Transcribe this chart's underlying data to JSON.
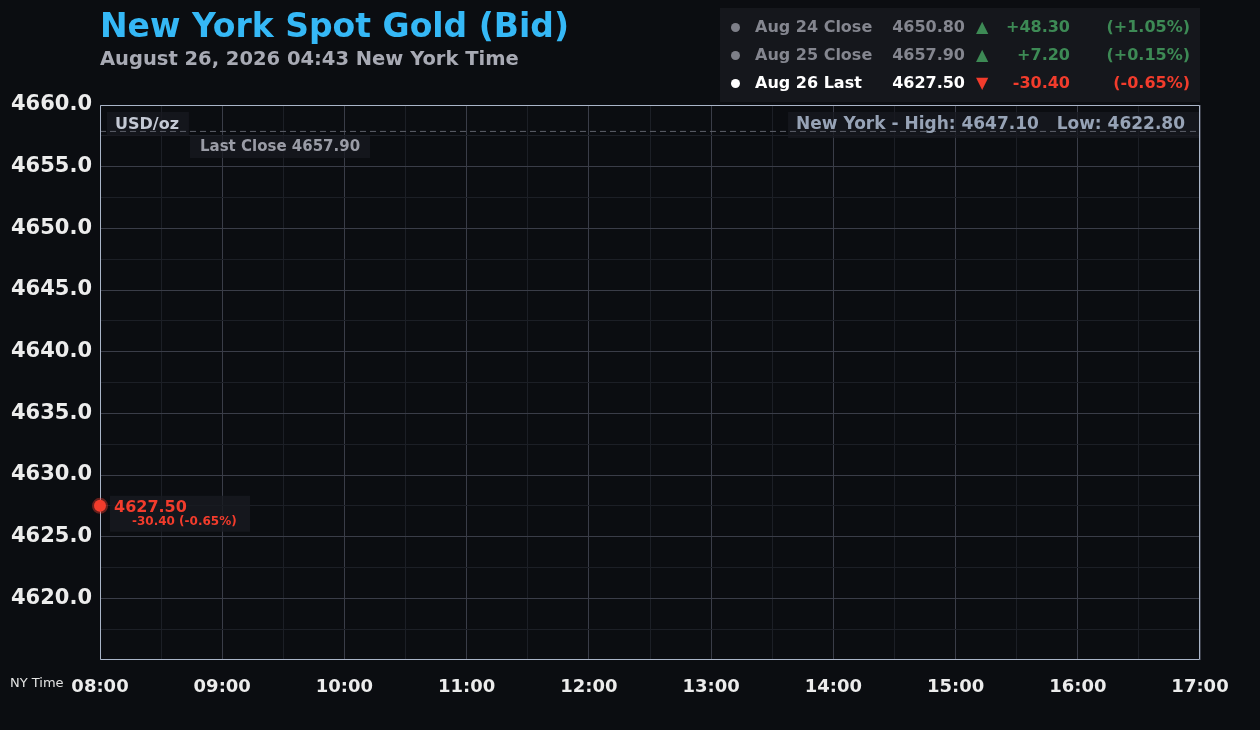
{
  "chart_data": {
    "type": "line",
    "title": "New York Spot Gold (Bid)",
    "subtitle": "August 26, 2026 04:43 New York Time",
    "xlabel": "NY Time",
    "ylabel": "USD/oz",
    "x": [
      8
    ],
    "values": [
      4627.5
    ],
    "color": "#f23c2c",
    "value_labels": [
      "4627.50"
    ],
    "marker": "circle",
    "xlim": [
      8,
      17
    ],
    "xticks": [
      {
        "value": 8,
        "label": "08:00"
      },
      {
        "value": 8.5,
        "label": null
      },
      {
        "value": 9,
        "label": "09:00"
      },
      {
        "value": 9.5,
        "label": null
      },
      {
        "value": 10,
        "label": "10:00"
      },
      {
        "value": 10.5,
        "label": null
      },
      {
        "value": 11,
        "label": "11:00"
      },
      {
        "value": 11.5,
        "label": null
      },
      {
        "value": 12,
        "label": "12:00"
      },
      {
        "value": 12.5,
        "label": null
      },
      {
        "value": 13,
        "label": "13:00"
      },
      {
        "value": 13.5,
        "label": null
      },
      {
        "value": 14,
        "label": "14:00"
      },
      {
        "value": 14.5,
        "label": null
      },
      {
        "value": 15,
        "label": "15:00"
      },
      {
        "value": 15.5,
        "label": null
      },
      {
        "value": 16,
        "label": "16:00"
      },
      {
        "value": 16.5,
        "label": null
      },
      {
        "value": 17,
        "label": "17:00"
      }
    ],
    "ylim": [
      4615,
      4660
    ],
    "yticks": [
      {
        "value": 4617.5,
        "label": null
      },
      {
        "value": 4620,
        "label": "4620.0"
      },
      {
        "value": 4622.5,
        "label": null
      },
      {
        "value": 4625,
        "label": "4625.0"
      },
      {
        "value": 4627.5,
        "label": null
      },
      {
        "value": 4630,
        "label": "4630.0"
      },
      {
        "value": 4632.5,
        "label": null
      },
      {
        "value": 4635,
        "label": "4635.0"
      },
      {
        "value": 4637.5,
        "label": null
      },
      {
        "value": 4640,
        "label": "4640.0"
      },
      {
        "value": 4642.5,
        "label": null
      },
      {
        "value": 4645,
        "label": "4645.0"
      },
      {
        "value": 4647.5,
        "label": null
      },
      {
        "value": 4650,
        "label": "4650.0"
      },
      {
        "value": 4652.5,
        "label": null
      },
      {
        "value": 4655,
        "label": "4655.0"
      },
      {
        "value": 4657.5,
        "label": null
      },
      {
        "value": 4660,
        "label": "4660.0"
      }
    ],
    "grid": true,
    "legend": false,
    "ref_lines": [
      {
        "axis": "y",
        "value": 4657.9,
        "label": "Last Close 4657.90",
        "color": "#5f626c",
        "line_style": "dashed"
      }
    ],
    "annotations": [
      "Aug 24 Close",
      "4650.80",
      "▲",
      "+48.30",
      "(+1.05%)",
      "Aug 25 Close",
      "4657.90",
      "▲",
      "+7.20",
      "(+0.15%)",
      "Aug 26 Last",
      "4627.50",
      "▼",
      "-30.40",
      "(-0.65%)",
      "New York - High: 4647.10   Low: 4622.80",
      {
        "text": "-30.40 (-0.65%)",
        "x": 8,
        "y": 4627.5
      }
    ]
  }
}
